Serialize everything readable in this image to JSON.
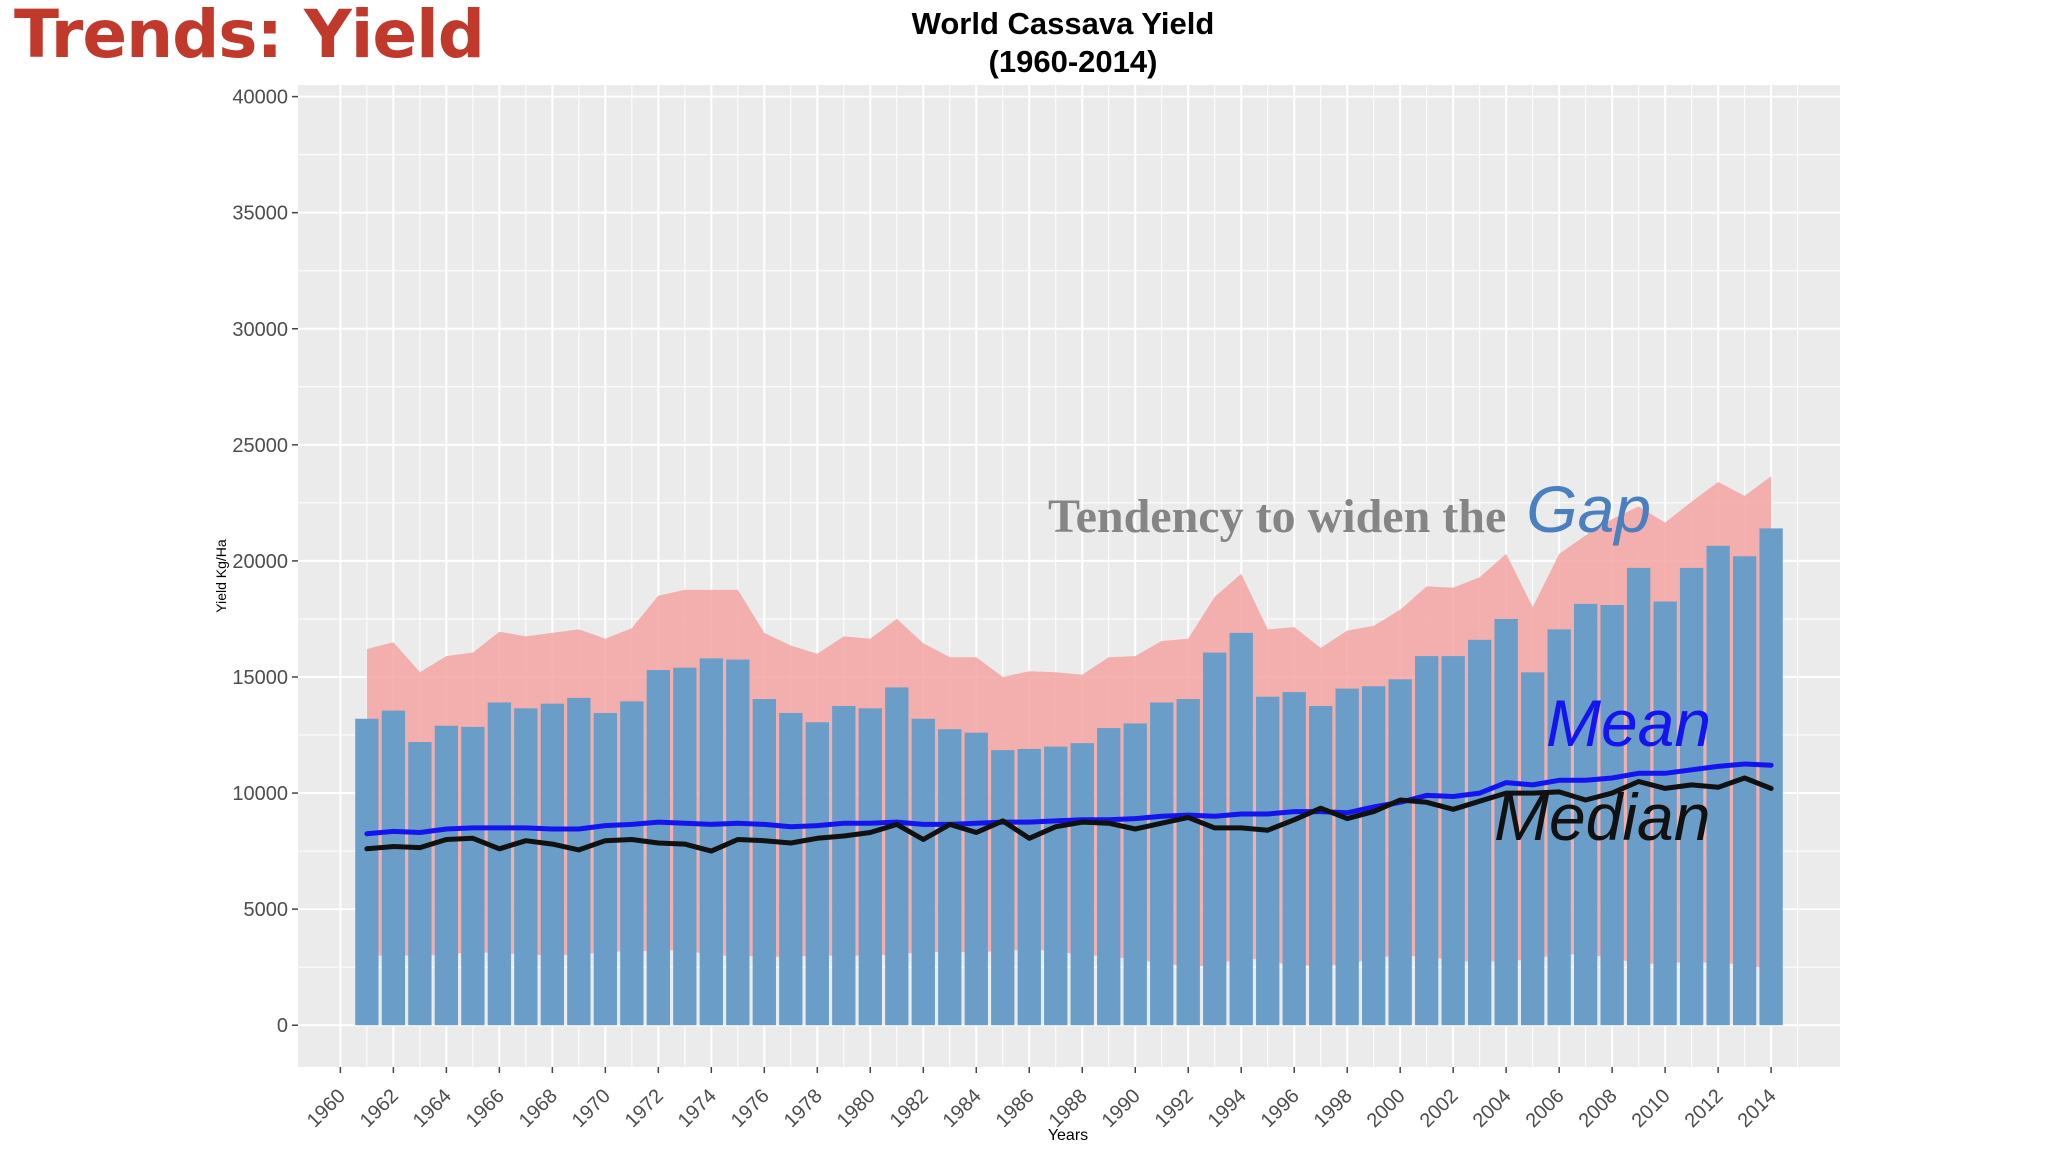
{
  "slide": {
    "title": "Trends: Yield"
  },
  "chart_data": {
    "type": "bar",
    "title": "World Cassava Yield",
    "subtitle": "(1960-2014)",
    "xlabel": "Years",
    "ylabel": "Yield Kg/Ha",
    "ylim": [
      -1800,
      40500
    ],
    "y_ticks": [
      0,
      5000,
      10000,
      15000,
      20000,
      25000,
      30000,
      35000,
      40000
    ],
    "x_ticks": [
      "1960",
      "1962",
      "1964",
      "1966",
      "1968",
      "1970",
      "1972",
      "1974",
      "1976",
      "1978",
      "1980",
      "1982",
      "1984",
      "1986",
      "1988",
      "1990",
      "1992",
      "1994",
      "1996",
      "1998",
      "2000",
      "2002",
      "2004",
      "2006",
      "2008",
      "2010",
      "2012",
      "2014"
    ],
    "grid": true,
    "x": [
      1961,
      1962,
      1963,
      1964,
      1965,
      1966,
      1967,
      1968,
      1969,
      1970,
      1971,
      1972,
      1973,
      1974,
      1975,
      1976,
      1977,
      1978,
      1979,
      1980,
      1981,
      1982,
      1983,
      1984,
      1985,
      1986,
      1987,
      1988,
      1989,
      1990,
      1991,
      1992,
      1993,
      1994,
      1995,
      1996,
      1997,
      1998,
      1999,
      2000,
      2001,
      2002,
      2003,
      2004,
      2005,
      2006,
      2007,
      2008,
      2009,
      2010,
      2011,
      2012,
      2013,
      2014
    ],
    "series": [
      {
        "kind": "bar",
        "color": "#6a9ec8",
        "values": [
          13200,
          13550,
          12200,
          12900,
          12850,
          13900,
          13650,
          13850,
          14100,
          13450,
          13950,
          15300,
          15400,
          15800,
          15750,
          14050,
          13450,
          13050,
          13750,
          13650,
          14550,
          13200,
          12750,
          12600,
          11850,
          11900,
          12000,
          12150,
          12800,
          13000,
          13900,
          14050,
          16050,
          16900,
          14150,
          14350,
          13750,
          14500,
          14600,
          14900,
          15900,
          15900,
          16600,
          17500,
          15200,
          17050,
          18150,
          18100,
          19700,
          18250,
          19700,
          20650,
          20200,
          21400
        ]
      },
      {
        "kind": "band",
        "color": "#f4a0a0",
        "lower": [
          3000,
          3000,
          3000,
          3050,
          3150,
          3100,
          3050,
          3000,
          3050,
          3150,
          3200,
          3200,
          3250,
          3000,
          3000,
          2950,
          2950,
          3000,
          3000,
          3000,
          3050,
          3150,
          3150,
          3150,
          3200,
          3250,
          3200,
          3000,
          3000,
          2800,
          2700,
          2500,
          2600,
          2900,
          2800,
          2550,
          2600,
          2600,
          2900,
          3000,
          2950,
          2800,
          2700,
          2800,
          2800,
          3100,
          3000,
          2950,
          2600,
          2700,
          2700,
          2700,
          2600,
          2400
        ],
        "upper": [
          16200,
          16500,
          15200,
          15900,
          16050,
          16950,
          16750,
          16900,
          17050,
          16650,
          17100,
          18500,
          18750,
          18750,
          18750,
          16900,
          16350,
          16000,
          16750,
          16650,
          17500,
          16450,
          15850,
          15850,
          15000,
          15250,
          15200,
          15100,
          15850,
          15900,
          16550,
          16650,
          18450,
          19450,
          17050,
          17150,
          16250,
          17000,
          17200,
          17900,
          18900,
          18850,
          19300,
          20300,
          18000,
          20300,
          21100,
          21800,
          22350,
          21650,
          22550,
          23400,
          22800,
          23650
        ]
      },
      {
        "kind": "line",
        "color": "#1414ee",
        "values": [
          8250,
          8350,
          8300,
          8450,
          8500,
          8500,
          8500,
          8450,
          8450,
          8600,
          8650,
          8750,
          8700,
          8650,
          8700,
          8650,
          8550,
          8600,
          8700,
          8700,
          8750,
          8650,
          8650,
          8700,
          8750,
          8750,
          8800,
          8850,
          8850,
          8900,
          9000,
          9050,
          9000,
          9100,
          9100,
          9200,
          9200,
          9150,
          9400,
          9600,
          9900,
          9850,
          10000,
          10450,
          10350,
          10550,
          10550,
          10650,
          10850,
          10850,
          11000,
          11150,
          11250,
          11200
        ]
      },
      {
        "kind": "line",
        "color": "#111111",
        "values": [
          7600,
          7700,
          7650,
          8000,
          8050,
          7600,
          7950,
          7800,
          7550,
          7950,
          8000,
          7850,
          7800,
          7500,
          8000,
          7950,
          7850,
          8050,
          8150,
          8300,
          8650,
          8000,
          8650,
          8300,
          8800,
          8050,
          8550,
          8750,
          8700,
          8450,
          8700,
          8950,
          8500,
          8500,
          8400,
          8850,
          9350,
          8900,
          9200,
          9700,
          9600,
          9300,
          9650,
          10000,
          10000,
          10050,
          9700,
          10000,
          10500,
          10200,
          10350,
          10250,
          10650,
          10200
        ]
      }
    ],
    "annotations": {
      "gap_prefix": "Tendency to widen the",
      "gap_word": "Gap",
      "mean_label": "Mean",
      "median_label": "Median"
    },
    "colors": {
      "panel_bg": "#ebebeb",
      "grid": "#ffffff",
      "bar": "#6a9ec8",
      "band": "#f4a0a0",
      "mean": "#1414ee",
      "median": "#111111",
      "gap_text": "#858585",
      "gap_word": "#4a7fc0",
      "slide_title": "#c0392b"
    }
  }
}
